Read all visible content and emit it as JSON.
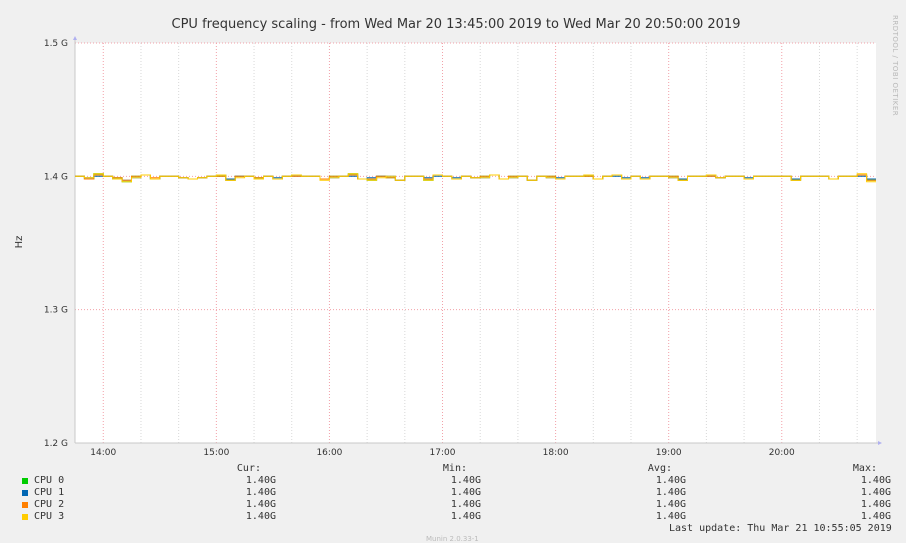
{
  "chart_data": {
    "type": "line",
    "title": "CPU frequency scaling - from Wed Mar 20 13:45:00 2019 to Wed Mar 20 20:50:00 2019",
    "ylabel": "Hz",
    "ylim": [
      1.2,
      1.5
    ],
    "yticks": [
      1.2,
      1.3,
      1.4,
      1.5
    ],
    "ytick_labels": [
      "1.2 G",
      "1.3 G",
      "1.4 G",
      "1.5 G"
    ],
    "xlim": [
      "13:45",
      "20:50"
    ],
    "xticks": [
      "14:00",
      "15:00",
      "16:00",
      "17:00",
      "18:00",
      "19:00",
      "20:00"
    ],
    "grid": true,
    "watermark": "RRDTOOL / TOBI OETIKER",
    "x": [
      "13:45",
      "13:50",
      "13:55",
      "14:00",
      "14:05",
      "14:10",
      "14:15",
      "14:20",
      "14:25",
      "14:30",
      "14:35",
      "14:40",
      "14:45",
      "14:50",
      "14:55",
      "15:00",
      "15:05",
      "15:10",
      "15:15",
      "15:20",
      "15:25",
      "15:30",
      "15:35",
      "15:40",
      "15:45",
      "15:50",
      "15:55",
      "16:00",
      "16:05",
      "16:10",
      "16:15",
      "16:20",
      "16:25",
      "16:30",
      "16:35",
      "16:40",
      "16:45",
      "16:50",
      "16:55",
      "17:00",
      "17:05",
      "17:10",
      "17:15",
      "17:20",
      "17:25",
      "17:30",
      "17:35",
      "17:40",
      "17:45",
      "17:50",
      "17:55",
      "18:00",
      "18:05",
      "18:10",
      "18:15",
      "18:20",
      "18:25",
      "18:30",
      "18:35",
      "18:40",
      "18:45",
      "18:50",
      "18:55",
      "19:00",
      "19:05",
      "19:10",
      "19:15",
      "19:20",
      "19:25",
      "19:30",
      "19:35",
      "19:40",
      "19:45",
      "19:50",
      "19:55",
      "20:00",
      "20:05",
      "20:10",
      "20:15",
      "20:20",
      "20:25",
      "20:30",
      "20:35",
      "20:40",
      "20:45"
    ],
    "series": [
      {
        "name": "CPU 0",
        "color": "#00cc00",
        "values": [
          1.4,
          1.398,
          1.402,
          1.4,
          1.399,
          1.396,
          1.4,
          1.401,
          1.398,
          1.4,
          1.4,
          1.399,
          1.398,
          1.399,
          1.4,
          1.4,
          1.397,
          1.4,
          1.4,
          1.399,
          1.4,
          1.398,
          1.4,
          1.401,
          1.4,
          1.4,
          1.398,
          1.4,
          1.4,
          1.402,
          1.398,
          1.397,
          1.4,
          1.399,
          1.397,
          1.4,
          1.4,
          1.397,
          1.401,
          1.4,
          1.398,
          1.4,
          1.399,
          1.4,
          1.401,
          1.398,
          1.4,
          1.4,
          1.397,
          1.4,
          1.4,
          1.398,
          1.4,
          1.4,
          1.4,
          1.398,
          1.4,
          1.401,
          1.398,
          1.4,
          1.398,
          1.4,
          1.4,
          1.4,
          1.397,
          1.4,
          1.4,
          1.401,
          1.399,
          1.4,
          1.4,
          1.398,
          1.4,
          1.4,
          1.4,
          1.4,
          1.397,
          1.4,
          1.4,
          1.4,
          1.398,
          1.4,
          1.4,
          1.401,
          1.397
        ]
      },
      {
        "name": "CPU 1",
        "color": "#0066b3",
        "values": [
          1.4,
          1.399,
          1.4,
          1.4,
          1.398,
          1.397,
          1.399,
          1.401,
          1.398,
          1.4,
          1.4,
          1.399,
          1.398,
          1.399,
          1.4,
          1.401,
          1.398,
          1.4,
          1.4,
          1.398,
          1.4,
          1.399,
          1.4,
          1.4,
          1.4,
          1.4,
          1.398,
          1.399,
          1.4,
          1.4,
          1.398,
          1.399,
          1.4,
          1.4,
          1.397,
          1.4,
          1.4,
          1.399,
          1.4,
          1.4,
          1.399,
          1.4,
          1.399,
          1.399,
          1.401,
          1.398,
          1.399,
          1.4,
          1.397,
          1.4,
          1.399,
          1.399,
          1.4,
          1.4,
          1.401,
          1.398,
          1.4,
          1.4,
          1.399,
          1.4,
          1.399,
          1.4,
          1.4,
          1.399,
          1.398,
          1.4,
          1.4,
          1.4,
          1.399,
          1.4,
          1.4,
          1.399,
          1.4,
          1.4,
          1.4,
          1.4,
          1.398,
          1.4,
          1.4,
          1.4,
          1.398,
          1.4,
          1.4,
          1.4,
          1.398
        ]
      },
      {
        "name": "CPU 2",
        "color": "#ff8000",
        "values": [
          1.4,
          1.398,
          1.401,
          1.4,
          1.399,
          1.397,
          1.4,
          1.401,
          1.399,
          1.4,
          1.4,
          1.399,
          1.398,
          1.399,
          1.4,
          1.4,
          1.397,
          1.4,
          1.4,
          1.399,
          1.4,
          1.398,
          1.4,
          1.4,
          1.4,
          1.4,
          1.398,
          1.4,
          1.4,
          1.401,
          1.398,
          1.398,
          1.4,
          1.399,
          1.397,
          1.4,
          1.4,
          1.398,
          1.401,
          1.4,
          1.398,
          1.4,
          1.399,
          1.4,
          1.401,
          1.398,
          1.4,
          1.4,
          1.397,
          1.4,
          1.4,
          1.398,
          1.4,
          1.4,
          1.4,
          1.398,
          1.4,
          1.401,
          1.398,
          1.4,
          1.398,
          1.4,
          1.4,
          1.4,
          1.397,
          1.4,
          1.4,
          1.4,
          1.399,
          1.4,
          1.4,
          1.398,
          1.4,
          1.4,
          1.4,
          1.4,
          1.397,
          1.4,
          1.4,
          1.4,
          1.398,
          1.4,
          1.4,
          1.401,
          1.397
        ]
      },
      {
        "name": "CPU 3",
        "color": "#ffcc00",
        "values": [
          1.4,
          1.399,
          1.402,
          1.4,
          1.398,
          1.396,
          1.399,
          1.401,
          1.398,
          1.4,
          1.4,
          1.399,
          1.398,
          1.399,
          1.4,
          1.401,
          1.397,
          1.399,
          1.4,
          1.398,
          1.4,
          1.398,
          1.4,
          1.401,
          1.4,
          1.4,
          1.397,
          1.399,
          1.4,
          1.402,
          1.398,
          1.397,
          1.399,
          1.4,
          1.397,
          1.4,
          1.4,
          1.397,
          1.401,
          1.4,
          1.398,
          1.4,
          1.399,
          1.399,
          1.401,
          1.398,
          1.399,
          1.4,
          1.397,
          1.4,
          1.399,
          1.398,
          1.4,
          1.4,
          1.401,
          1.398,
          1.4,
          1.401,
          1.398,
          1.4,
          1.398,
          1.4,
          1.4,
          1.399,
          1.397,
          1.4,
          1.4,
          1.401,
          1.399,
          1.4,
          1.4,
          1.398,
          1.4,
          1.4,
          1.4,
          1.4,
          1.397,
          1.4,
          1.4,
          1.4,
          1.398,
          1.4,
          1.4,
          1.402,
          1.396
        ]
      }
    ]
  },
  "legend": {
    "headers": {
      "cur": "Cur:",
      "min": "Min:",
      "avg": "Avg:",
      "max": "Max:"
    },
    "rows": [
      {
        "name": "CPU 0",
        "color": "#00cc00",
        "cur": "1.40G",
        "min": "1.40G",
        "avg": "1.40G",
        "max": "1.40G"
      },
      {
        "name": "CPU 1",
        "color": "#0066b3",
        "cur": "1.40G",
        "min": "1.40G",
        "avg": "1.40G",
        "max": "1.40G"
      },
      {
        "name": "CPU 2",
        "color": "#ff8000",
        "cur": "1.40G",
        "min": "1.40G",
        "avg": "1.40G",
        "max": "1.40G"
      },
      {
        "name": "CPU 3",
        "color": "#ffcc00",
        "cur": "1.40G",
        "min": "1.40G",
        "avg": "1.40G",
        "max": "1.40G"
      }
    ]
  },
  "footer": {
    "last_update": "Last update:  Thu Mar 21 10:55:05 2019",
    "credit": "Munin 2.0.33-1"
  }
}
